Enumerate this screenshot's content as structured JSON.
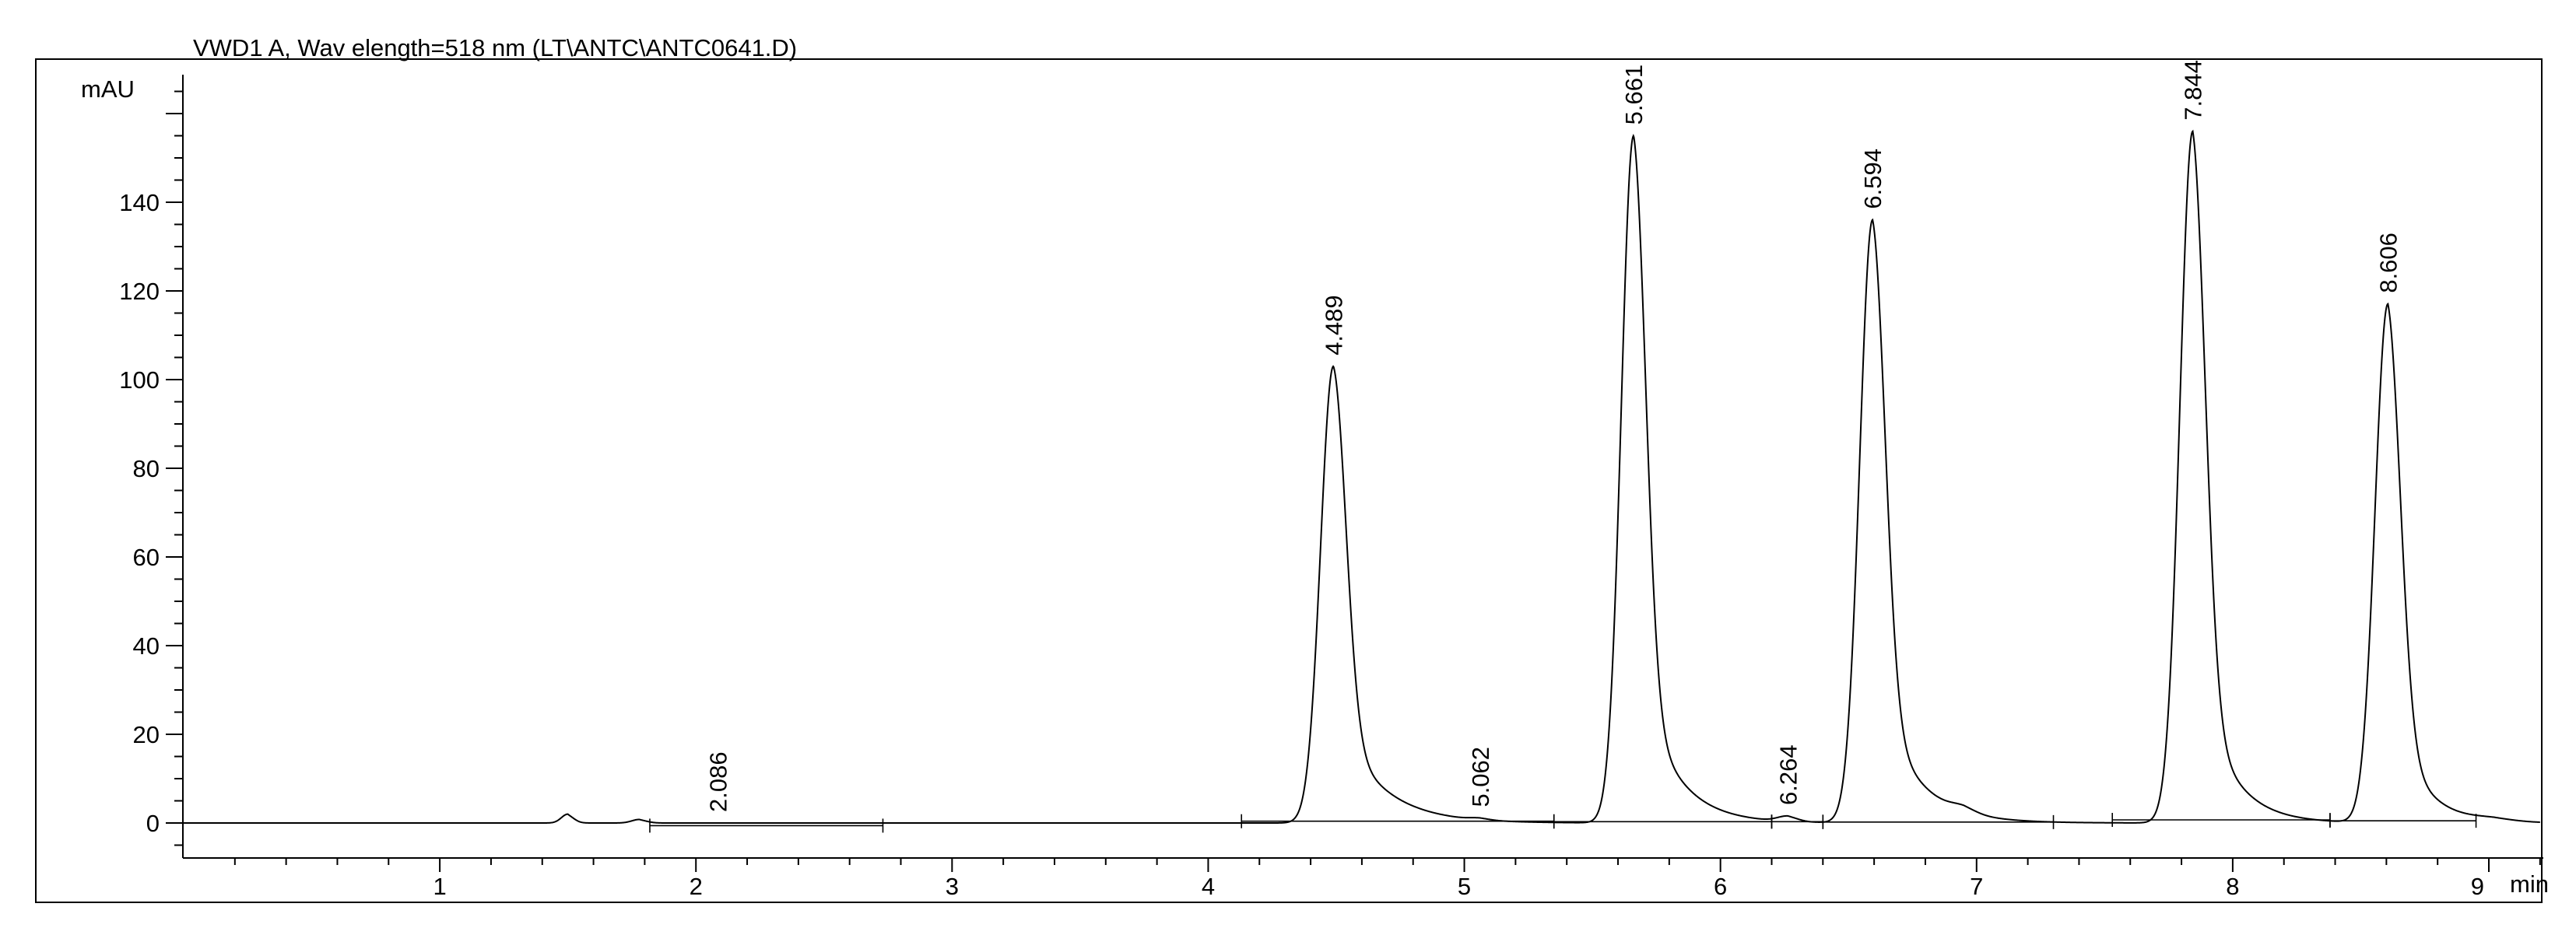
{
  "chart_data": {
    "type": "line",
    "title": "VWD1 A, Wav elength=518 nm (LT\\ANTC\\ANTC0641.D)",
    "xlabel": "min",
    "ylabel": "mAU",
    "xlim": [
      0,
      9.2
    ],
    "ylim": [
      -8,
      167
    ],
    "x_ticks": [
      1,
      2,
      3,
      4,
      5,
      6,
      7,
      8,
      9
    ],
    "x_tick_labels": [
      "1",
      "2",
      "3",
      "4",
      "5",
      "6",
      "7",
      "8",
      "9"
    ],
    "y_ticks": [
      0,
      20,
      40,
      60,
      80,
      100,
      120,
      140
    ],
    "y_tick_labels": [
      "0",
      "20",
      "40",
      "60",
      "80",
      "100",
      "120",
      "140"
    ],
    "grid": false,
    "legend": "none",
    "series": [
      {
        "line_color": "#000000",
        "peaks": [
          {
            "rt": 1.5,
            "height": 2.0,
            "sigma": 0.025,
            "tail": 0.01
          },
          {
            "rt": 1.78,
            "height": 0.8,
            "sigma": 0.03,
            "tail": 0.01
          },
          {
            "rt": 4.489,
            "height": 103,
            "sigma": 0.05,
            "tail": 0.16
          },
          {
            "rt": 5.062,
            "height": 0.4,
            "sigma": 0.04,
            "tail": 0.02
          },
          {
            "rt": 5.661,
            "height": 155,
            "sigma": 0.048,
            "tail": 0.13
          },
          {
            "rt": 6.264,
            "height": 1.2,
            "sigma": 0.04,
            "tail": 0.02
          },
          {
            "rt": 6.594,
            "height": 136,
            "sigma": 0.05,
            "tail": 0.14
          },
          {
            "rt": 6.95,
            "height": 1.2,
            "sigma": 0.05,
            "tail": 0.03
          },
          {
            "rt": 7.844,
            "height": 156,
            "sigma": 0.05,
            "tail": 0.12
          },
          {
            "rt": 8.606,
            "height": 117,
            "sigma": 0.05,
            "tail": 0.11
          },
          {
            "rt": 9.02,
            "height": 0.6,
            "sigma": 0.08,
            "tail": 0.05
          }
        ]
      }
    ],
    "peak_labels": [
      {
        "rt": 2.086,
        "text": "2.086"
      },
      {
        "rt": 4.489,
        "text": "4.489"
      },
      {
        "rt": 5.062,
        "text": "5.062"
      },
      {
        "rt": 5.661,
        "text": "5.661"
      },
      {
        "rt": 6.264,
        "text": "6.264"
      },
      {
        "rt": 6.594,
        "text": "6.594"
      },
      {
        "rt": 7.844,
        "text": "7.844"
      },
      {
        "rt": 8.606,
        "text": "8.606"
      }
    ],
    "integration_baselines": [
      {
        "x1": 1.82,
        "x2": 2.73,
        "y": -0.6
      },
      {
        "x1": 4.13,
        "x2": 5.35,
        "y": 0.4
      },
      {
        "x1": 5.35,
        "x2": 6.2,
        "y": 0.3
      },
      {
        "x1": 6.2,
        "x2": 6.4,
        "y": 0.3
      },
      {
        "x1": 6.4,
        "x2": 7.3,
        "y": 0.2
      },
      {
        "x1": 7.53,
        "x2": 8.38,
        "y": 0.7
      },
      {
        "x1": 8.38,
        "x2": 8.95,
        "y": 0.5
      }
    ]
  }
}
